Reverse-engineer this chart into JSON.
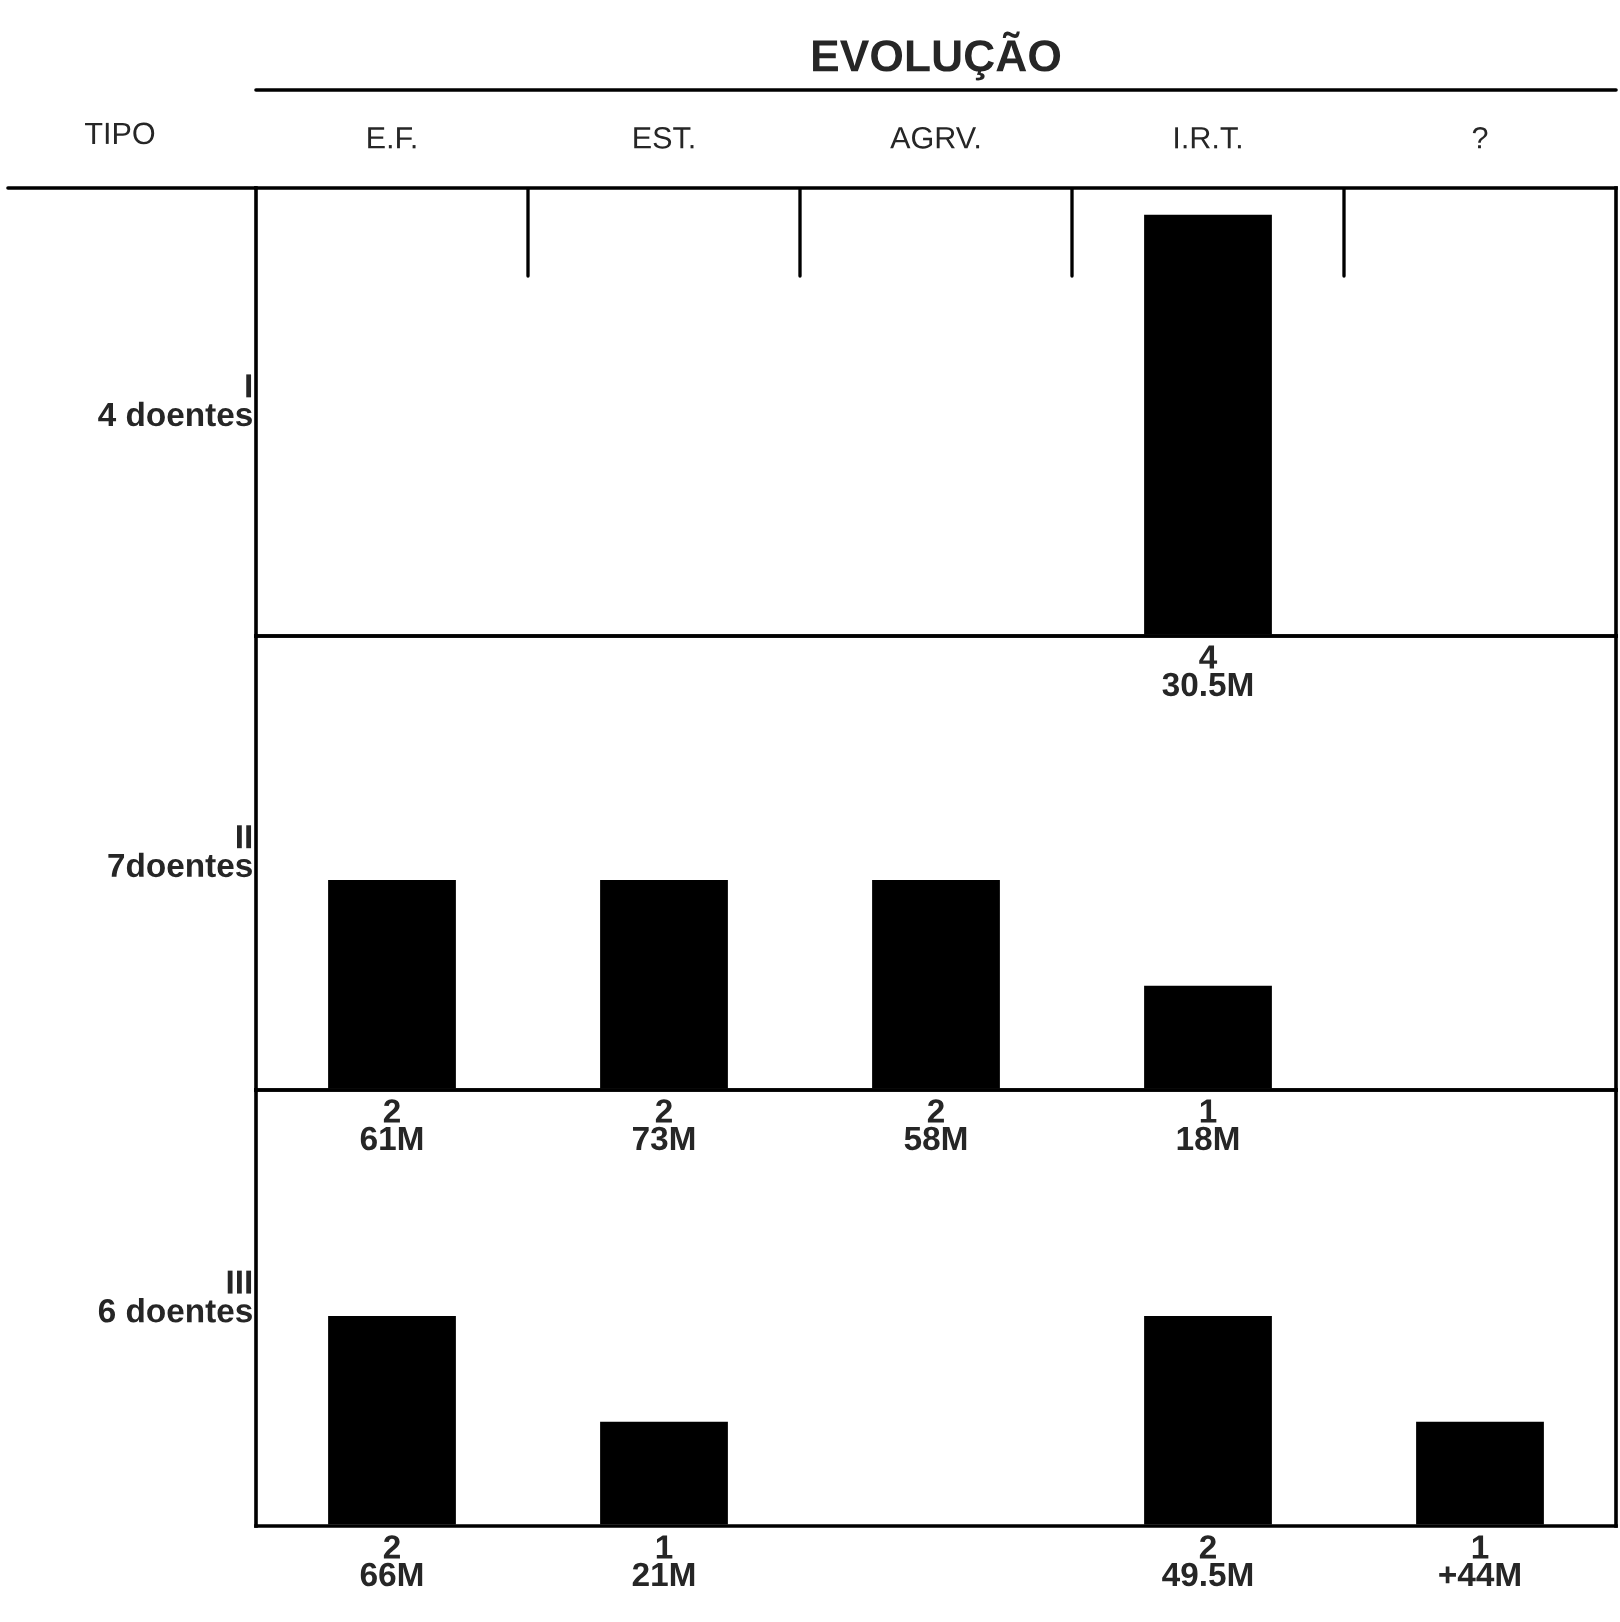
{
  "chart_data": [
    {
      "type": "bar",
      "title": "EVOLUÇÃO",
      "annotations": [
        "TIPO"
      ],
      "ylabel": "I\n4 doentes",
      "categories": [
        "E.F.",
        "EST.",
        "AGRV.",
        "I.R.T.",
        "?"
      ],
      "tick_labels": "x",
      "values": [
        null,
        null,
        null,
        4,
        null
      ],
      "color": "#000000",
      "value_labels": [
        null,
        null,
        null,
        "4\n30.5M",
        null
      ]
    },
    {
      "type": "bar",
      "ylabel": "II\n7doentes",
      "categories": [
        null,
        null,
        null,
        null,
        null
      ],
      "values": [
        2,
        2,
        2,
        1,
        null
      ],
      "color": "#000000",
      "value_labels": [
        "2\n61M",
        "2\n73M",
        "2\n58M",
        "1\n18M",
        null
      ]
    },
    {
      "type": "bar",
      "ylabel": "III\n6 doentes",
      "categories": [
        null,
        null,
        null,
        null,
        null
      ],
      "values": [
        2,
        1,
        null,
        2,
        1
      ],
      "color": "#000000",
      "value_labels": [
        "2\n66M",
        "1\n21M",
        null,
        "2\n49.5M",
        "1\n+44M"
      ]
    }
  ]
}
